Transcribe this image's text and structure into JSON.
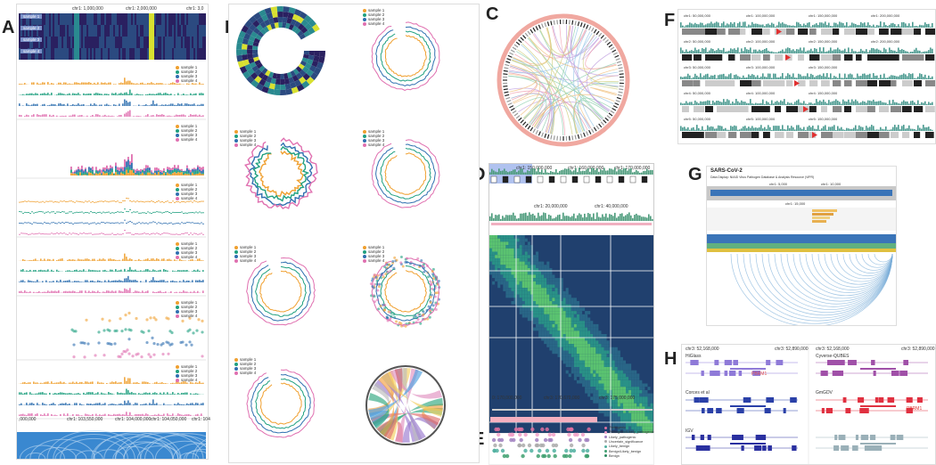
{
  "labels": {
    "a": "A",
    "b": "B",
    "c": "C",
    "d": "D",
    "e": "E",
    "f": "F",
    "g": "G",
    "h": "H"
  },
  "samples": [
    "sample 1",
    "sample 2",
    "sample 3",
    "sample 4"
  ],
  "colors": {
    "s1": "#f0a030",
    "s2": "#20a080",
    "s3": "#3070b0",
    "s4": "#e070b0",
    "heat_dark": "#2a2060",
    "heat_mid": "#2a8a90",
    "heat_hi": "#d8e030",
    "arc": "#5a9ad0"
  },
  "a_ticks": [
    "chr1: 1,000,000",
    "chr1: 2,000,000",
    "chr1: 3,0"
  ],
  "a_bottom_ticks": [
    ",000,000",
    "chr1: 103,550,000",
    "chr1: 104,000,000",
    "chr1: 104,050,000",
    "chr1: 104"
  ],
  "d_ticks_top": [
    "chr1: 150,000,000",
    "chr1: 160,000,000",
    "chr1: 170,000,000"
  ],
  "d_ticks_mid": [
    "chr1: 20,000,000",
    "chr1: 40,000,000"
  ],
  "e_ticks": [
    "0: 170,000,000",
    "chr3: 170,670,000",
    "chr3: 175,000,000"
  ],
  "e_legend": [
    "Pathogenic",
    "Pathogenic/Likely_pathogenic",
    "Likely_pathogenic",
    "Uncertain_significance",
    "Likely_benign",
    "Benign/Likely_benign",
    "Benign"
  ],
  "f_rows": [
    [
      "chr1: 50,000,000",
      "chr1: 100,000,000",
      "chr1: 150,000,000",
      "chr1: 200,000,000"
    ],
    [
      "chr2: 50,000,000",
      "chr2: 100,000,000",
      "chr2: 150,000,000",
      "chr2: 200,000,000"
    ],
    [
      "chr3: 50,000,000",
      "chr3: 100,000,000",
      "chr3: 150,000,000"
    ],
    [
      "chr4: 50,000,000",
      "chr4: 100,000,000",
      "chr4: 150,000,000"
    ],
    [
      "chr5: 50,000,000",
      "chr5: 100,000,000",
      "chr5: 150,000,000"
    ]
  ],
  "g_title": "SARS-CoV-2",
  "g_subtitle": "Data Display: NIAID Virus Pathogen Database & Analysis Resource (ViPR)",
  "g_ticks": [
    "chr1: 5,000",
    "chr1: 10,000",
    "chr1: 15,000",
    "chr1: 20,000"
  ],
  "h_ticks": [
    "chr3: 52,168,000",
    "chr3: 52,890,000",
    "chr3: 52,168,000",
    "chr3: 52,890,000"
  ],
  "h_names": [
    "HiGlass",
    "Cyverse-QUBES",
    "Corces et al",
    "GmGDV",
    "IGV",
    ""
  ],
  "h_gene": "PBRM1"
}
